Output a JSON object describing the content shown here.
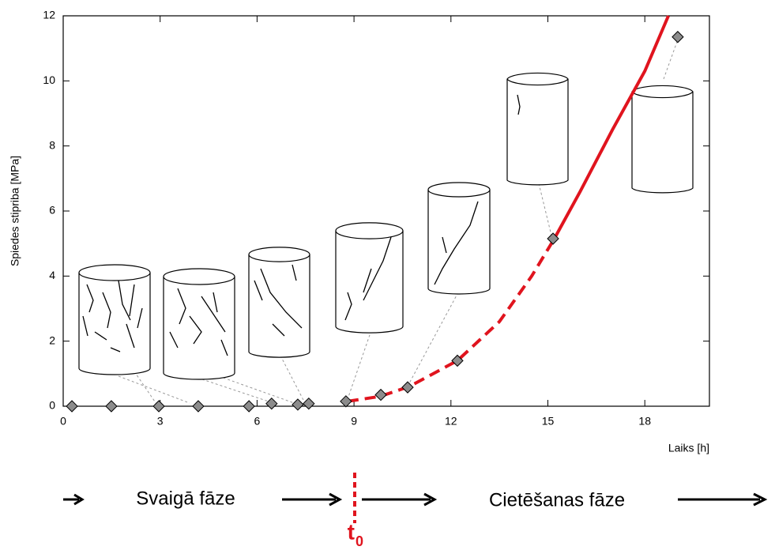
{
  "chart_data": {
    "type": "scatter",
    "ylabel": "Spiedes stipriba  [MPa]",
    "xlabel": "Laiks [h]",
    "xlim": [
      0,
      20
    ],
    "ylim": [
      0,
      12
    ],
    "xticks": [
      0,
      3,
      6,
      9,
      12,
      15,
      18
    ],
    "yticks": [
      0,
      2,
      4,
      6,
      8,
      10,
      12
    ],
    "x": [
      0.27,
      1.49,
      2.96,
      4.18,
      5.75,
      6.45,
      7.26,
      7.6,
      8.75,
      9.83,
      10.66,
      12.2,
      15.16,
      19.02
    ],
    "values": [
      0,
      0,
      0,
      0,
      0,
      0.08,
      0.05,
      0.08,
      0.15,
      0.35,
      0.58,
      1.4,
      5.15,
      11.35
    ],
    "color": "#8c8c8c",
    "curves": [
      {
        "style": "dashed",
        "color": "#e0141e",
        "x": [
          8.8,
          9.8,
          10.7,
          12.2,
          13.5,
          14.5,
          15.2
        ],
        "values": [
          0.15,
          0.3,
          0.6,
          1.4,
          2.6,
          4.0,
          5.15
        ]
      },
      {
        "style": "solid",
        "color": "#e0141e",
        "x": [
          15.2,
          16,
          17,
          18,
          18.73
        ],
        "values": [
          5.15,
          6.6,
          8.5,
          10.3,
          12
        ]
      }
    ],
    "annotations": {
      "phase1": "Svaigā fāze",
      "phase2": "Cietēšanas fāze",
      "t": "t",
      "t_sub": "0"
    }
  }
}
